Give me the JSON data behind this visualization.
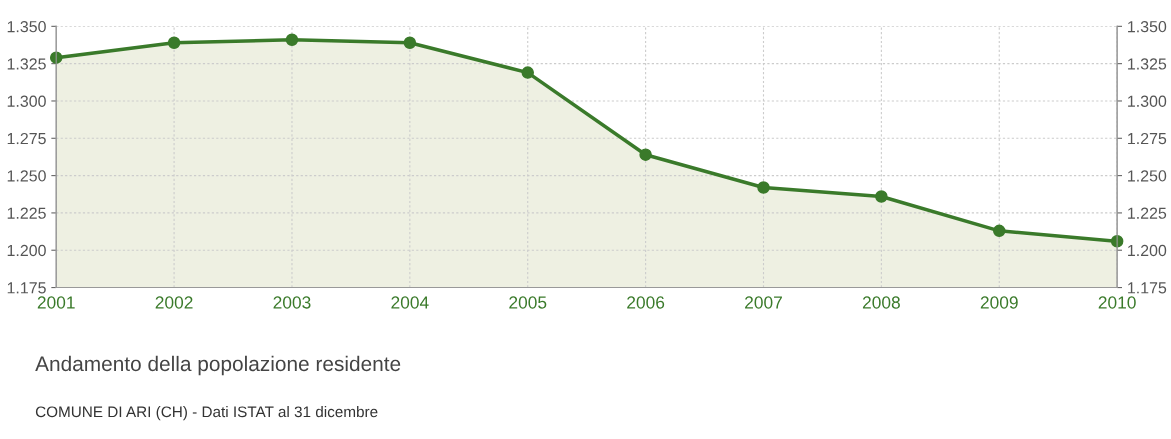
{
  "chart_data": {
    "type": "area",
    "title": "Andamento della popolazione residente",
    "annotations": [
      "COMUNE DI ARI (CH) - Dati ISTAT al 31 dicembre"
    ],
    "x": [
      2001,
      2002,
      2003,
      2004,
      2005,
      2006,
      2007,
      2008,
      2009,
      2010
    ],
    "series": [
      {
        "color": "#3a7a2a",
        "values": [
          1329,
          1339,
          1341,
          1339,
          1319,
          1264,
          1242,
          1236,
          1213,
          1206
        ]
      }
    ],
    "xlim": [
      2001,
      2010
    ],
    "xticks": [
      2001,
      2002,
      2003,
      2004,
      2005,
      2006,
      2007,
      2008,
      2009,
      2010
    ],
    "ylim": [
      1175,
      1350
    ],
    "yticks": [
      {
        "value": 1175,
        "label": "1.175"
      },
      {
        "value": 1200,
        "label": "1.200"
      },
      {
        "value": 1225,
        "label": "1.225"
      },
      {
        "value": 1250,
        "label": "1.250"
      },
      {
        "value": 1275,
        "label": "1.275"
      },
      {
        "value": 1300,
        "label": "1.300"
      },
      {
        "value": 1325,
        "label": "1.325"
      },
      {
        "value": 1350,
        "label": "1.350"
      }
    ],
    "y2lim": [
      1175,
      1350
    ],
    "y2ticks": [
      {
        "value": 1175,
        "label": "1.175"
      },
      {
        "value": 1200,
        "label": "1.200"
      },
      {
        "value": 1225,
        "label": "1.225"
      },
      {
        "value": 1250,
        "label": "1.250"
      },
      {
        "value": 1275,
        "label": "1.275"
      },
      {
        "value": 1300,
        "label": "1.300"
      },
      {
        "value": 1325,
        "label": "1.325"
      },
      {
        "value": 1350,
        "label": "1.350"
      }
    ],
    "grid": true,
    "marker": "circle",
    "line_style": "solid",
    "legend": false
  }
}
